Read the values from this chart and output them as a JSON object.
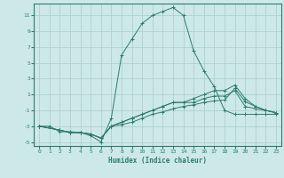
{
  "title": "",
  "xlabel": "Humidex (Indice chaleur)",
  "background_color": "#cce8e8",
  "line_color": "#2e7b6e",
  "grid_color": "#aacccc",
  "xlim": [
    -0.5,
    23.5
  ],
  "ylim": [
    -5.5,
    12.5
  ],
  "xticks": [
    0,
    1,
    2,
    3,
    4,
    5,
    6,
    7,
    8,
    9,
    10,
    11,
    12,
    13,
    14,
    15,
    16,
    17,
    18,
    19,
    20,
    21,
    22,
    23
  ],
  "yticks": [
    -5,
    -3,
    -1,
    1,
    3,
    5,
    7,
    9,
    11
  ],
  "series": [
    {
      "x": [
        0,
        1,
        2,
        3,
        4,
        5,
        6,
        7,
        8,
        9,
        10,
        11,
        12,
        13,
        14,
        15,
        16,
        17,
        18,
        19,
        20,
        21,
        22,
        23
      ],
      "y": [
        -3,
        -3,
        -3.7,
        -3.7,
        -3.8,
        -4.2,
        -5,
        -2,
        6,
        8,
        10,
        11,
        11.5,
        12,
        11,
        6.5,
        4,
        2,
        -1,
        -1.5,
        -1.5,
        -1.5,
        -1.5,
        -1.5
      ]
    },
    {
      "x": [
        0,
        2,
        3,
        4,
        5,
        6,
        7,
        8,
        9,
        10,
        11,
        12,
        13,
        14,
        15,
        16,
        17,
        18,
        19,
        20,
        21,
        22,
        23
      ],
      "y": [
        -3,
        -3.5,
        -3.8,
        -3.8,
        -4.0,
        -4.5,
        -3,
        -2.5,
        -2,
        -1.5,
        -1,
        -0.5,
        0,
        0,
        0.5,
        1,
        1.5,
        1.5,
        2.2,
        0.5,
        -0.5,
        -1,
        -1.3
      ]
    },
    {
      "x": [
        0,
        2,
        3,
        4,
        5,
        6,
        7,
        8,
        9,
        10,
        11,
        12,
        13,
        14,
        15,
        16,
        17,
        18,
        19,
        20,
        21,
        22,
        23
      ],
      "y": [
        -3,
        -3.5,
        -3.8,
        -3.8,
        -4.0,
        -4.5,
        -3,
        -2.5,
        -2,
        -1.5,
        -1,
        -0.5,
        0,
        0,
        0,
        0.5,
        0.8,
        0.8,
        1.5,
        -0.5,
        -0.8,
        -1,
        -1.3
      ]
    },
    {
      "x": [
        0,
        2,
        3,
        4,
        5,
        6,
        7,
        8,
        9,
        10,
        11,
        12,
        13,
        14,
        15,
        16,
        17,
        18,
        19,
        20,
        21,
        22,
        23
      ],
      "y": [
        -3,
        -3.5,
        -3.8,
        -3.8,
        -4.0,
        -4.5,
        -3,
        -2.8,
        -2.5,
        -2,
        -1.5,
        -1.2,
        -0.8,
        -0.5,
        -0.3,
        0,
        0.2,
        0.3,
        1.8,
        0.1,
        -0.5,
        -1,
        -1.3
      ]
    }
  ]
}
